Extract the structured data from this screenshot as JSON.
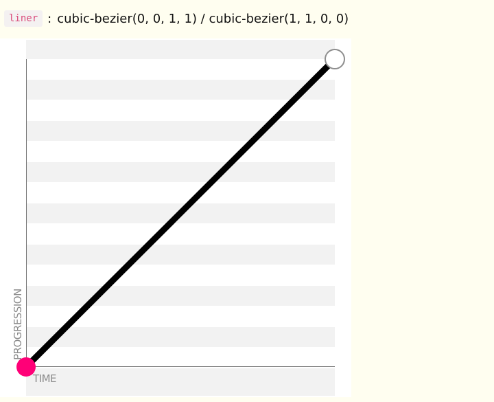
{
  "header": {
    "keyword": "liner",
    "separator": ":",
    "formula": "cubic-bezier(0, 0, 1, 1) / cubic-bezier(1, 1, 0, 0)"
  },
  "graph": {
    "x_axis_label": "TIME",
    "y_axis_label": "PROGRESSION",
    "start_handle_color": "#ff0077",
    "end_handle_color": "#ffffff",
    "curve_color": "#000000",
    "stripe_color": "#f2f2f2"
  },
  "chart_data": {
    "type": "line",
    "x": [
      0,
      1
    ],
    "y": [
      0,
      1
    ],
    "xlabel": "TIME",
    "ylabel": "PROGRESSION",
    "xlim": [
      0,
      1
    ],
    "ylim": [
      0,
      1
    ],
    "grid": false
  }
}
